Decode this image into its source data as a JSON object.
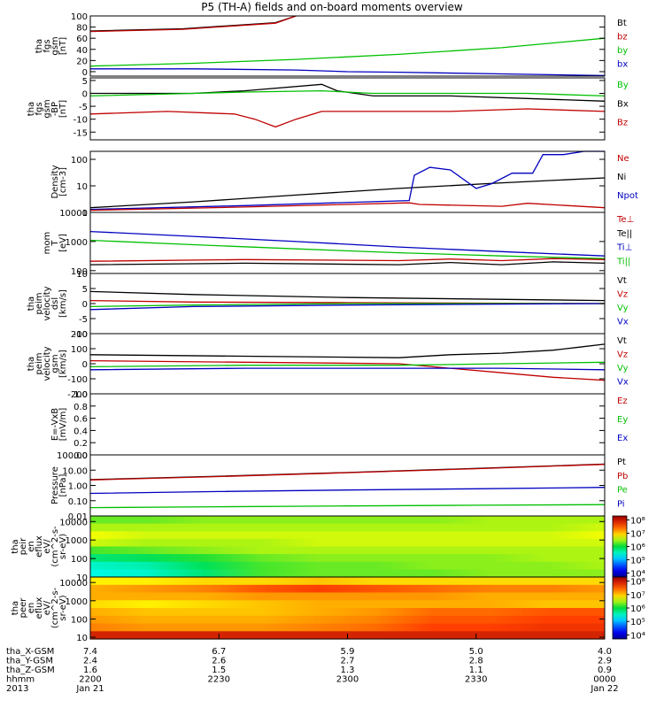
{
  "title": "P5 (TH-A) fields and on-board moments overview",
  "chart_data": [
    {
      "type": "line",
      "id": "fgs_mag",
      "ylabel": [
        "tha",
        "fgs",
        "gsm",
        "[nT]"
      ],
      "ylim": [
        -8,
        100
      ],
      "ticks": [
        "100",
        "80",
        "60",
        "40",
        "20",
        "0"
      ],
      "tick_values": [
        100,
        80,
        60,
        40,
        20,
        0
      ],
      "legend": [
        {
          "label": "Bt",
          "color": "#000000"
        },
        {
          "label": "bz",
          "color": "#c00000"
        },
        {
          "label": "by",
          "color": "#00c000"
        },
        {
          "label": "bx",
          "color": "#0000c0"
        }
      ],
      "series": [
        {
          "label": "Bt",
          "color": "#000000",
          "x": [
            0,
            0.18,
            0.36,
            0.4
          ],
          "y": [
            73,
            77,
            88,
            102
          ]
        },
        {
          "label": "bz",
          "color": "#c00000",
          "x": [
            0,
            0.18,
            0.36,
            0.4
          ],
          "y": [
            72,
            76,
            87,
            101
          ]
        },
        {
          "label": "by",
          "color": "#00c000",
          "x": [
            0,
            0.2,
            0.4,
            0.6,
            0.8,
            1.0
          ],
          "y": [
            10,
            15,
            22,
            31,
            43,
            60
          ]
        },
        {
          "label": "bx",
          "color": "#0000c0",
          "x": [
            0,
            0.2,
            0.4,
            0.5,
            0.6,
            0.8,
            1.0
          ],
          "y": [
            5,
            5,
            3,
            0,
            -1,
            -4,
            -7
          ]
        }
      ]
    },
    {
      "type": "line",
      "id": "fgs_detail",
      "ylabel": [
        "tha",
        "fgs",
        "gsm",
        "-BP",
        "[nT]"
      ],
      "ylim": [
        -18,
        6
      ],
      "ticks": [
        "5",
        "0",
        "-5",
        "-10",
        "-15"
      ],
      "tick_values": [
        5,
        0,
        -5,
        -10,
        -15
      ],
      "legend": [
        {
          "label": "By",
          "color": "#00c000"
        },
        {
          "label": "Bx",
          "color": "#000000"
        },
        {
          "label": "Bz",
          "color": "#c00000"
        }
      ],
      "series": [
        {
          "label": "Bx",
          "color": "#000000",
          "x": [
            0,
            0.2,
            0.3,
            0.45,
            0.48,
            0.55,
            0.7,
            0.85,
            1.0
          ],
          "y": [
            0,
            0,
            1,
            3.5,
            1,
            -1,
            -1,
            -2,
            -3
          ]
        },
        {
          "label": "By",
          "color": "#00c000",
          "x": [
            0,
            0.2,
            0.3,
            0.45,
            0.55,
            0.7,
            0.85,
            1.0
          ],
          "y": [
            -1,
            0,
            0.5,
            1,
            0,
            0,
            0,
            -1
          ]
        },
        {
          "label": "Bz",
          "color": "#c00000",
          "x": [
            0,
            0.15,
            0.28,
            0.32,
            0.36,
            0.4,
            0.45,
            0.55,
            0.7,
            0.85,
            1.0
          ],
          "y": [
            -8,
            -7,
            -8,
            -10,
            -13,
            -10,
            -7,
            -7,
            -7,
            -6,
            -7
          ]
        }
      ]
    },
    {
      "type": "line",
      "id": "density",
      "ylabel": [
        "Density",
        "[cm-3]"
      ],
      "scale": "log",
      "ylim": [
        1,
        200
      ],
      "ticks": [
        "100",
        "10",
        "1"
      ],
      "tick_values": [
        100,
        10,
        1
      ],
      "legend": [
        {
          "label": "Ne",
          "color": "#c00000"
        },
        {
          "label": "Ni",
          "color": "#000000"
        },
        {
          "label": "Npot",
          "color": "#0000c0"
        }
      ],
      "series": [
        {
          "label": "Ni",
          "color": "#000000",
          "x": [
            0,
            0.2,
            0.4,
            0.6,
            0.8,
            1.0
          ],
          "y": [
            1.5,
            2.5,
            4.5,
            8,
            13,
            20
          ]
        },
        {
          "label": "Npot",
          "color": "#0000c0",
          "x": [
            0,
            0.3,
            0.62,
            0.63,
            0.66,
            0.7,
            0.75,
            0.78,
            0.82,
            0.86,
            0.88,
            0.92,
            0.96,
            0.98,
            1.0
          ],
          "y": [
            1.3,
            1.8,
            2.8,
            25,
            50,
            40,
            8,
            12,
            30,
            30,
            150,
            150,
            200,
            200,
            200
          ]
        },
        {
          "label": "Ne",
          "color": "#c00000",
          "x": [
            0,
            0.3,
            0.62,
            0.64,
            0.8,
            0.85,
            1.0
          ],
          "y": [
            1.2,
            1.6,
            2.3,
            2.0,
            1.7,
            2.2,
            1.5
          ]
        }
      ]
    },
    {
      "type": "line",
      "id": "temperature",
      "ylabel": [
        "mom",
        "T",
        "[eV]"
      ],
      "scale": "log",
      "ylim": [
        80,
        10000
      ],
      "ticks": [
        "10000",
        "1000",
        "100"
      ],
      "tick_values": [
        10000,
        1000,
        100
      ],
      "legend": [
        {
          "label": "Te⊥",
          "color": "#c00000"
        },
        {
          "label": "Te||",
          "color": "#000000"
        },
        {
          "label": "Ti⊥",
          "color": "#0000c0"
        },
        {
          "label": "Ti||",
          "color": "#00c000"
        }
      ],
      "series": [
        {
          "label": "Ti⊥",
          "color": "#0000c0",
          "x": [
            0,
            0.2,
            0.4,
            0.6,
            0.8,
            1.0
          ],
          "y": [
            2200,
            1500,
            1000,
            650,
            450,
            320
          ]
        },
        {
          "label": "Ti||",
          "color": "#00c000",
          "x": [
            0,
            0.2,
            0.4,
            0.6,
            0.8,
            1.0
          ],
          "y": [
            1100,
            780,
            560,
            410,
            320,
            260
          ]
        },
        {
          "label": "Te⊥",
          "color": "#c00000",
          "x": [
            0,
            0.3,
            0.6,
            0.7,
            0.8,
            0.9,
            1.0
          ],
          "y": [
            210,
            240,
            220,
            250,
            220,
            260,
            240
          ]
        },
        {
          "label": "Te||",
          "color": "#000000",
          "x": [
            0,
            0.3,
            0.6,
            0.7,
            0.8,
            0.9,
            1.0
          ],
          "y": [
            160,
            180,
            160,
            190,
            160,
            200,
            180
          ]
        }
      ]
    },
    {
      "type": "line",
      "id": "peim_dsl",
      "ylabel": [
        "tha",
        "peim",
        "velocity",
        "dsl",
        "[km/s]"
      ],
      "ylim": [
        -10,
        10
      ],
      "ticks": [
        "10",
        "5",
        "0",
        "-5",
        "-10"
      ],
      "tick_values": [
        10,
        5,
        0,
        -5,
        -10
      ],
      "legend": [
        {
          "label": "Vt",
          "color": "#000000"
        },
        {
          "label": "Vz",
          "color": "#c00000"
        },
        {
          "label": "Vy",
          "color": "#00c000"
        },
        {
          "label": "Vx",
          "color": "#0000c0"
        }
      ],
      "series": [
        {
          "label": "Vt",
          "color": "#000000",
          "x": [
            0,
            0.2,
            0.5,
            1.0
          ],
          "y": [
            4,
            3,
            2,
            1
          ]
        },
        {
          "label": "Vz",
          "color": "#c00000",
          "x": [
            0,
            0.2,
            0.5,
            1.0
          ],
          "y": [
            1,
            0.5,
            0.3,
            0
          ]
        },
        {
          "label": "Vy",
          "color": "#00c000",
          "x": [
            0,
            0.2,
            0.5,
            1.0
          ],
          "y": [
            -1,
            -0.5,
            0,
            0
          ]
        },
        {
          "label": "Vx",
          "color": "#0000c0",
          "x": [
            0,
            0.2,
            0.5,
            1.0
          ],
          "y": [
            -2,
            -1,
            -0.5,
            0
          ]
        }
      ]
    },
    {
      "type": "line",
      "id": "peim_gsm",
      "ylabel": [
        "tha",
        "peim",
        "velocity",
        "gsm",
        "[km/s]"
      ],
      "ylim": [
        -200,
        200
      ],
      "ticks": [
        "200",
        "100",
        "0",
        "-100",
        "-200"
      ],
      "tick_values": [
        200,
        100,
        0,
        -100,
        -200
      ],
      "legend": [
        {
          "label": "Vt",
          "color": "#000000"
        },
        {
          "label": "Vz",
          "color": "#c00000"
        },
        {
          "label": "Vy",
          "color": "#00c000"
        },
        {
          "label": "Vx",
          "color": "#0000c0"
        }
      ],
      "series": [
        {
          "label": "Vt",
          "color": "#000000",
          "x": [
            0,
            0.3,
            0.6,
            0.7,
            0.8,
            0.9,
            0.95,
            1.0
          ],
          "y": [
            60,
            50,
            40,
            60,
            70,
            90,
            110,
            130
          ]
        },
        {
          "label": "Vz",
          "color": "#c00000",
          "x": [
            0,
            0.3,
            0.6,
            0.7,
            0.8,
            0.9,
            1.0
          ],
          "y": [
            20,
            10,
            0,
            -30,
            -60,
            -90,
            -110
          ]
        },
        {
          "label": "Vy",
          "color": "#00c000",
          "x": [
            0,
            0.3,
            0.6,
            0.8,
            1.0
          ],
          "y": [
            -20,
            -10,
            -10,
            0,
            10
          ]
        },
        {
          "label": "Vx",
          "color": "#0000c0",
          "x": [
            0,
            0.3,
            0.6,
            0.8,
            1.0
          ],
          "y": [
            -40,
            -30,
            -30,
            -30,
            -40
          ]
        }
      ]
    },
    {
      "type": "line",
      "id": "efield",
      "ylabel": [
        "E=-VxB",
        "[mV/m]"
      ],
      "ylim": [
        0,
        1
      ],
      "ticks": [
        "1.0",
        "0.8",
        "0.6",
        "0.4",
        "0.2",
        "0.0"
      ],
      "tick_values": [
        1.0,
        0.8,
        0.6,
        0.4,
        0.2,
        0.0
      ],
      "legend": [
        {
          "label": "Ez",
          "color": "#c00000"
        },
        {
          "label": "Ey",
          "color": "#00c000"
        },
        {
          "label": "Ex",
          "color": "#0000c0"
        }
      ],
      "series": []
    },
    {
      "type": "line",
      "id": "pressure",
      "ylabel": [
        "Pressure",
        "[nPa]"
      ],
      "scale": "log",
      "ylim": [
        0.01,
        100
      ],
      "ticks": [
        "100.00",
        "10.00",
        "1.00",
        "0.10",
        "0.01"
      ],
      "tick_values": [
        100,
        10,
        1,
        0.1,
        0.01
      ],
      "legend": [
        {
          "label": "Pt",
          "color": "#000000"
        },
        {
          "label": "Pb",
          "color": "#c00000"
        },
        {
          "label": "Pe",
          "color": "#00c000"
        },
        {
          "label": "Pi",
          "color": "#0000c0"
        }
      ],
      "series": [
        {
          "label": "Pt",
          "color": "#000000",
          "x": [
            0,
            0.25,
            0.5,
            0.75,
            1.0
          ],
          "y": [
            2.4,
            4,
            7,
            13,
            25
          ]
        },
        {
          "label": "Pb",
          "color": "#c00000",
          "x": [
            0,
            0.25,
            0.5,
            0.75,
            1.0
          ],
          "y": [
            2.3,
            3.8,
            6.8,
            12.5,
            24
          ]
        },
        {
          "label": "Pi",
          "color": "#0000c0",
          "x": [
            0,
            0.25,
            0.5,
            0.75,
            1.0
          ],
          "y": [
            0.3,
            0.4,
            0.5,
            0.6,
            0.75
          ]
        },
        {
          "label": "Pe",
          "color": "#00c000",
          "x": [
            0,
            0.25,
            0.5,
            0.75,
            1.0
          ],
          "y": [
            0.035,
            0.04,
            0.045,
            0.05,
            0.055
          ]
        }
      ]
    },
    {
      "type": "heatmap",
      "id": "peir",
      "ylabel": [
        "tha",
        "peir",
        "en",
        "eflux",
        "eV/",
        "(cm^2-s-",
        "sr-eV)"
      ],
      "scale": "log",
      "ylim": [
        10,
        20000
      ],
      "ticks": [
        "10000",
        "1000",
        "100",
        "10"
      ],
      "tick_values": [
        10000,
        1000,
        100,
        10
      ],
      "colorbar": {
        "ticks": [
          "10⁸",
          "10⁷",
          "10⁶",
          "10⁵",
          "10⁴"
        ],
        "tick_values": [
          8,
          7,
          6,
          5,
          4
        ],
        "range": [
          3.7,
          8.3
        ]
      },
      "grid": [
        [
          6.3,
          6.3,
          6.4,
          6.4,
          6.4,
          6.4,
          6.4,
          6.5,
          6.5,
          6.5
        ],
        [
          6.5,
          6.5,
          6.5,
          6.5,
          6.5,
          6.5,
          6.5,
          6.5,
          6.5,
          6.6
        ],
        [
          6.7,
          6.6,
          6.6,
          6.6,
          6.6,
          6.6,
          6.6,
          6.6,
          6.6,
          6.7
        ],
        [
          6.6,
          6.5,
          6.5,
          6.5,
          6.6,
          6.6,
          6.6,
          6.6,
          6.6,
          6.6
        ],
        [
          6.2,
          6.3,
          6.4,
          6.5,
          6.5,
          6.5,
          6.5,
          6.5,
          6.5,
          6.5
        ],
        [
          5.8,
          5.9,
          6.1,
          6.3,
          6.4,
          6.4,
          6.4,
          6.4,
          6.5,
          6.5
        ],
        [
          5.5,
          5.6,
          5.9,
          6.2,
          6.3,
          6.3,
          6.4,
          6.4,
          6.4,
          6.5
        ],
        [
          5.4,
          5.5,
          5.8,
          6.2,
          6.3,
          6.3,
          6.3,
          6.4,
          6.4,
          6.4
        ]
      ]
    },
    {
      "type": "heatmap",
      "id": "peer",
      "ylabel": [
        "tha",
        "peer",
        "en",
        "eflux",
        "eV/",
        "(cm^2-s-",
        "sr-eV)"
      ],
      "scale": "log",
      "ylim": [
        8,
        20000
      ],
      "ticks": [
        "10000",
        "1000",
        "100",
        "10"
      ],
      "tick_values": [
        10000,
        1000,
        100,
        10
      ],
      "colorbar": {
        "ticks": [
          "10⁸",
          "10⁷",
          "10⁶",
          "10⁵",
          "10⁴"
        ],
        "tick_values": [
          8,
          7,
          6,
          5,
          4
        ],
        "range": [
          3.7,
          8.3
        ]
      },
      "grid": [
        [
          6.8,
          6.8,
          6.9,
          6.9,
          7.0,
          6.9,
          6.9,
          6.9,
          6.9,
          6.9
        ],
        [
          7.1,
          7.2,
          7.3,
          7.5,
          7.6,
          7.5,
          7.4,
          7.3,
          7.3,
          7.2
        ],
        [
          7.1,
          7.1,
          7.1,
          7.2,
          7.2,
          7.2,
          7.2,
          7.1,
          7.1,
          7.1
        ],
        [
          6.9,
          6.8,
          6.9,
          7.0,
          7.1,
          7.1,
          7.1,
          7.1,
          7.0,
          7.0
        ],
        [
          7.1,
          7.0,
          7.0,
          7.0,
          7.1,
          7.2,
          7.4,
          7.4,
          7.5,
          7.5
        ],
        [
          7.2,
          7.1,
          7.1,
          7.1,
          7.2,
          7.3,
          7.5,
          7.5,
          7.6,
          7.6
        ],
        [
          7.3,
          7.2,
          7.2,
          7.2,
          7.3,
          7.4,
          7.6,
          7.6,
          7.7,
          7.7
        ],
        [
          7.9,
          7.9,
          7.9,
          7.9,
          7.9,
          7.9,
          7.9,
          7.9,
          7.9,
          7.9
        ]
      ]
    }
  ],
  "x_axis": {
    "tick_positions": [
      0,
      0.25,
      0.5,
      0.75,
      1.0
    ],
    "rows": [
      {
        "label": "tha_X-GSM",
        "values": [
          "7.4",
          "6.7",
          "5.9",
          "5.0",
          "4.0"
        ]
      },
      {
        "label": "tha_Y-GSM",
        "values": [
          "2.4",
          "2.6",
          "2.7",
          "2.8",
          "2.9"
        ]
      },
      {
        "label": "tha_Z-GSM",
        "values": [
          "1.6",
          "1.5",
          "1.3",
          "1.1",
          "0.9"
        ]
      },
      {
        "label": "hhmm",
        "values": [
          "2200",
          "2230",
          "2300",
          "2330",
          "0000"
        ]
      },
      {
        "label": "2013",
        "values": [
          "Jan 21",
          "",
          "",
          "",
          "Jan 22"
        ]
      }
    ]
  }
}
